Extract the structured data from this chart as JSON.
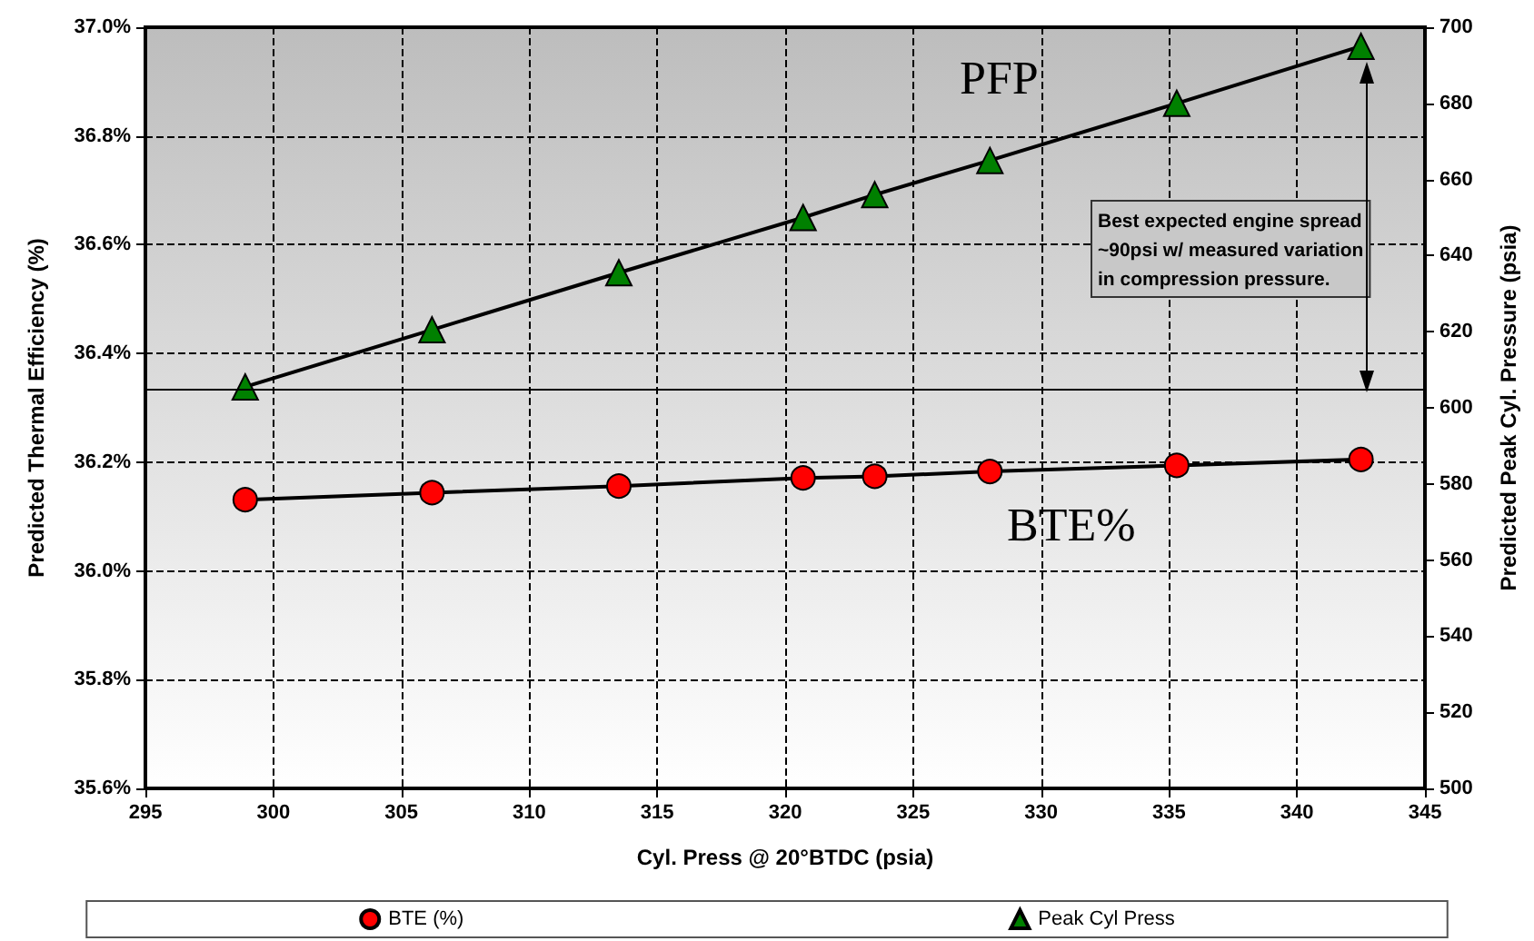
{
  "chart_data": {
    "type": "line",
    "xlabel": "Cyl. Press @ 20°BTDC (psia)",
    "ylabel": "Predicted Thermal Efficiency (%)",
    "y2label": "Predicted Peak Cyl. Pressure (psia)",
    "x": [
      298.9,
      306.2,
      313.5,
      320.7,
      323.5,
      328.0,
      335.3,
      342.5
    ],
    "series": [
      {
        "name": "BTE (%)",
        "color": "#ff0000",
        "marker": "circle",
        "values": [
          36.131,
          36.144,
          36.156,
          36.171,
          36.174,
          36.183,
          36.194,
          36.205
        ]
      },
      {
        "name": "Peak Cyl Press",
        "color": "#008000",
        "marker": "triangle",
        "axis": "y2",
        "values": [
          605.5,
          620.5,
          635.5,
          650,
          656,
          665,
          680,
          695
        ]
      }
    ],
    "xlim": [
      295,
      345
    ],
    "xticks": [
      295,
      300,
      305,
      310,
      315,
      320,
      325,
      330,
      335,
      340,
      345
    ],
    "ylim": [
      35.6,
      37
    ],
    "yticks": [
      {
        "value": 35.6,
        "label": "35.6%"
      },
      {
        "value": 35.8,
        "label": "35.8%"
      },
      {
        "value": 36,
        "label": "36.0%"
      },
      {
        "value": 36.2,
        "label": "36.2%"
      },
      {
        "value": 36.4,
        "label": "36.4%"
      },
      {
        "value": 36.6,
        "label": "36.6%"
      },
      {
        "value": 36.8,
        "label": "36.8%"
      },
      {
        "value": 37,
        "label": "37.0%"
      }
    ],
    "y2lim": [
      500,
      700
    ],
    "y2ticks": [
      500,
      520,
      540,
      560,
      580,
      600,
      620,
      640,
      660,
      680,
      700
    ],
    "ref_lines": [
      {
        "axis": "y2",
        "value": 605,
        "color": "#000000"
      }
    ],
    "annotations": [
      "PFP",
      "BTE%",
      "Best expected engine spread\n~90psi w/ measured variation\nin compression pressure."
    ],
    "grid": true,
    "legend": "bottom",
    "line_style": "solid"
  }
}
